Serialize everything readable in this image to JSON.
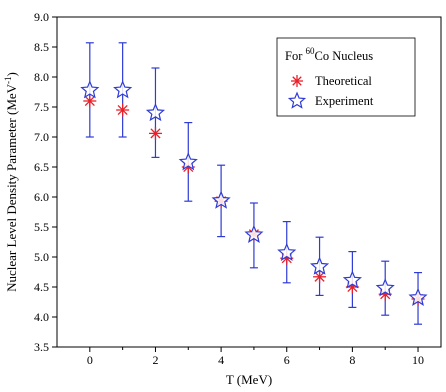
{
  "chart_data": {
    "type": "scatter",
    "xlabel": "T (MeV)",
    "ylabel_main": "Nuclear Level Density Parameter (MeV",
    "ylabel_sup": "-1",
    "ylabel_close": ")",
    "xlim": [
      -1,
      10.7
    ],
    "ylim": [
      3.5,
      9.0
    ],
    "x_ticks": [
      0,
      2,
      4,
      6,
      8,
      10
    ],
    "x_tick_labels": [
      "0",
      "2",
      "4",
      "6",
      "8",
      "10"
    ],
    "y_ticks": [
      3.5,
      4.0,
      4.5,
      5.0,
      5.5,
      6.0,
      6.5,
      7.0,
      7.5,
      8.0,
      8.5,
      9.0
    ],
    "y_tick_labels": [
      "3.5",
      "4.0",
      "4.5",
      "5.0",
      "5.5",
      "6.0",
      "6.5",
      "7.0",
      "7.5",
      "8.0",
      "8.5",
      "9.0"
    ],
    "legend": {
      "title_prefix": "For ",
      "title_sup": "60",
      "title_suffix": "Co Nucleus",
      "placement": "top-right"
    },
    "series": [
      {
        "name": "Theoretical",
        "marker": "asterisk",
        "color": "#e8202a",
        "x": [
          0,
          1,
          2,
          3,
          4,
          5,
          6,
          7,
          8,
          9,
          10
        ],
        "y": [
          7.6,
          7.45,
          7.06,
          6.5,
          5.93,
          5.38,
          4.98,
          4.67,
          4.5,
          4.38,
          4.3
        ]
      },
      {
        "name": "Experiment",
        "marker": "star",
        "color": "#2e3bd6",
        "x": [
          0,
          1,
          2,
          3,
          4,
          5,
          6,
          7,
          8,
          9,
          10
        ],
        "y": [
          7.78,
          7.78,
          7.4,
          6.58,
          5.94,
          5.37,
          5.07,
          4.84,
          4.61,
          4.48,
          4.32
        ],
        "err_low": [
          7.0,
          7.0,
          6.66,
          5.93,
          5.34,
          4.82,
          4.57,
          4.36,
          4.16,
          4.03,
          3.88
        ],
        "err_high": [
          8.57,
          8.57,
          8.15,
          7.24,
          6.53,
          5.9,
          5.59,
          5.33,
          5.09,
          4.93,
          4.74
        ]
      }
    ]
  }
}
